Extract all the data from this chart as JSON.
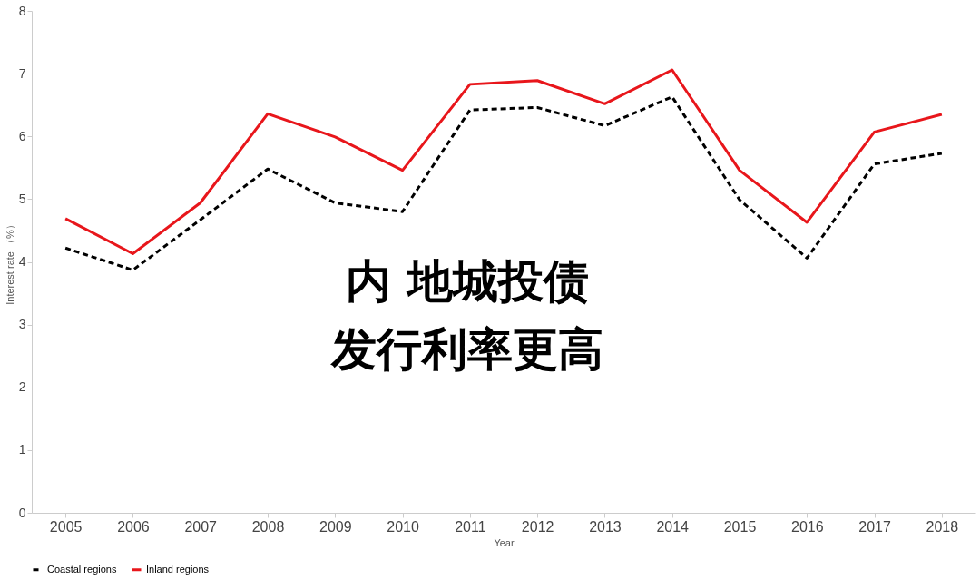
{
  "chart_data": {
    "type": "line",
    "xlabel": "Year",
    "ylabel": "Interest rate （%）",
    "categories": [
      "2005",
      "2006",
      "2007",
      "2008",
      "2009",
      "2010",
      "2011",
      "2012",
      "2013",
      "2014",
      "2015",
      "2016",
      "2017",
      "2018"
    ],
    "series": [
      {
        "name": "Coastal regions",
        "color": "#000000",
        "line_style": "dashed",
        "values": [
          4.22,
          3.87,
          4.67,
          5.48,
          4.94,
          4.8,
          6.42,
          6.46,
          6.17,
          6.63,
          4.99,
          4.06,
          5.56,
          5.73
        ]
      },
      {
        "name": "Inland regions",
        "color": "#e8161b",
        "line_style": "solid",
        "values": [
          4.69,
          4.13,
          4.94,
          6.36,
          5.99,
          5.46,
          6.83,
          6.89,
          6.52,
          7.06,
          5.46,
          4.63,
          6.07,
          6.35
        ]
      }
    ],
    "ylim": [
      0,
      8
    ],
    "yticks": [
      0,
      1,
      2,
      3,
      4,
      5,
      6,
      7,
      8
    ],
    "grid": false,
    "legend": "bottom",
    "marker": "none",
    "annotations": [
      "内 地城投债",
      "发行利率更高"
    ]
  }
}
